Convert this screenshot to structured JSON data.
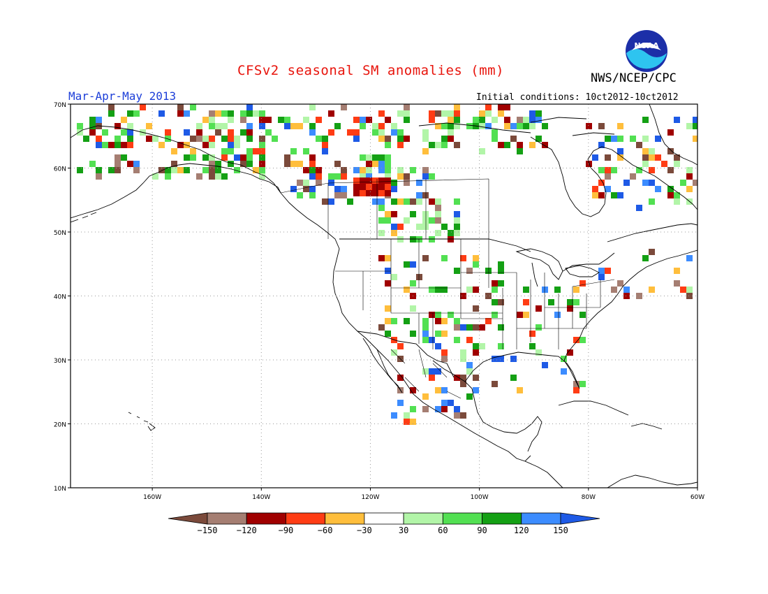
{
  "title": "CFSv2 seasonal SM anomalies (mm)",
  "season": "Mar-Apr-May 2013",
  "agency": "NWS/NCEP/CPC",
  "initial_conditions": "Initial conditions: 10ct2012-10ct2012",
  "logo": {
    "text": "NOAA",
    "icon": "noaa-logo-icon"
  },
  "map": {
    "projection": "lat-lon",
    "lon_range": [
      -175,
      -60
    ],
    "lat_range": [
      10,
      70
    ],
    "lat_ticks": [
      10,
      20,
      30,
      40,
      50,
      60,
      70
    ],
    "lat_labels": [
      "10N",
      "20N",
      "30N",
      "40N",
      "50N",
      "60N",
      "70N"
    ],
    "lon_ticks": [
      -160,
      -140,
      -120,
      -100,
      -80,
      -60
    ],
    "lon_labels": [
      "160W",
      "140W",
      "120W",
      "100W",
      "80W",
      "60W"
    ],
    "grid": "dotted"
  },
  "colorbar": {
    "levels": [
      "-150",
      "-120",
      "-90",
      "-60",
      "-30",
      "30",
      "60",
      "90",
      "120",
      "150"
    ],
    "colors": [
      "#7b4a3b",
      "#a57e72",
      "#a00000",
      "#ff3c14",
      "#ffbe3c",
      "#ffffff",
      "#b2f5a8",
      "#52e052",
      "#14a014",
      "#3c8cff",
      "#1e5ae6"
    ]
  },
  "colors": {
    "title": "#e8140c",
    "season": "#1c3ed8",
    "land_outline": "#000000"
  }
}
